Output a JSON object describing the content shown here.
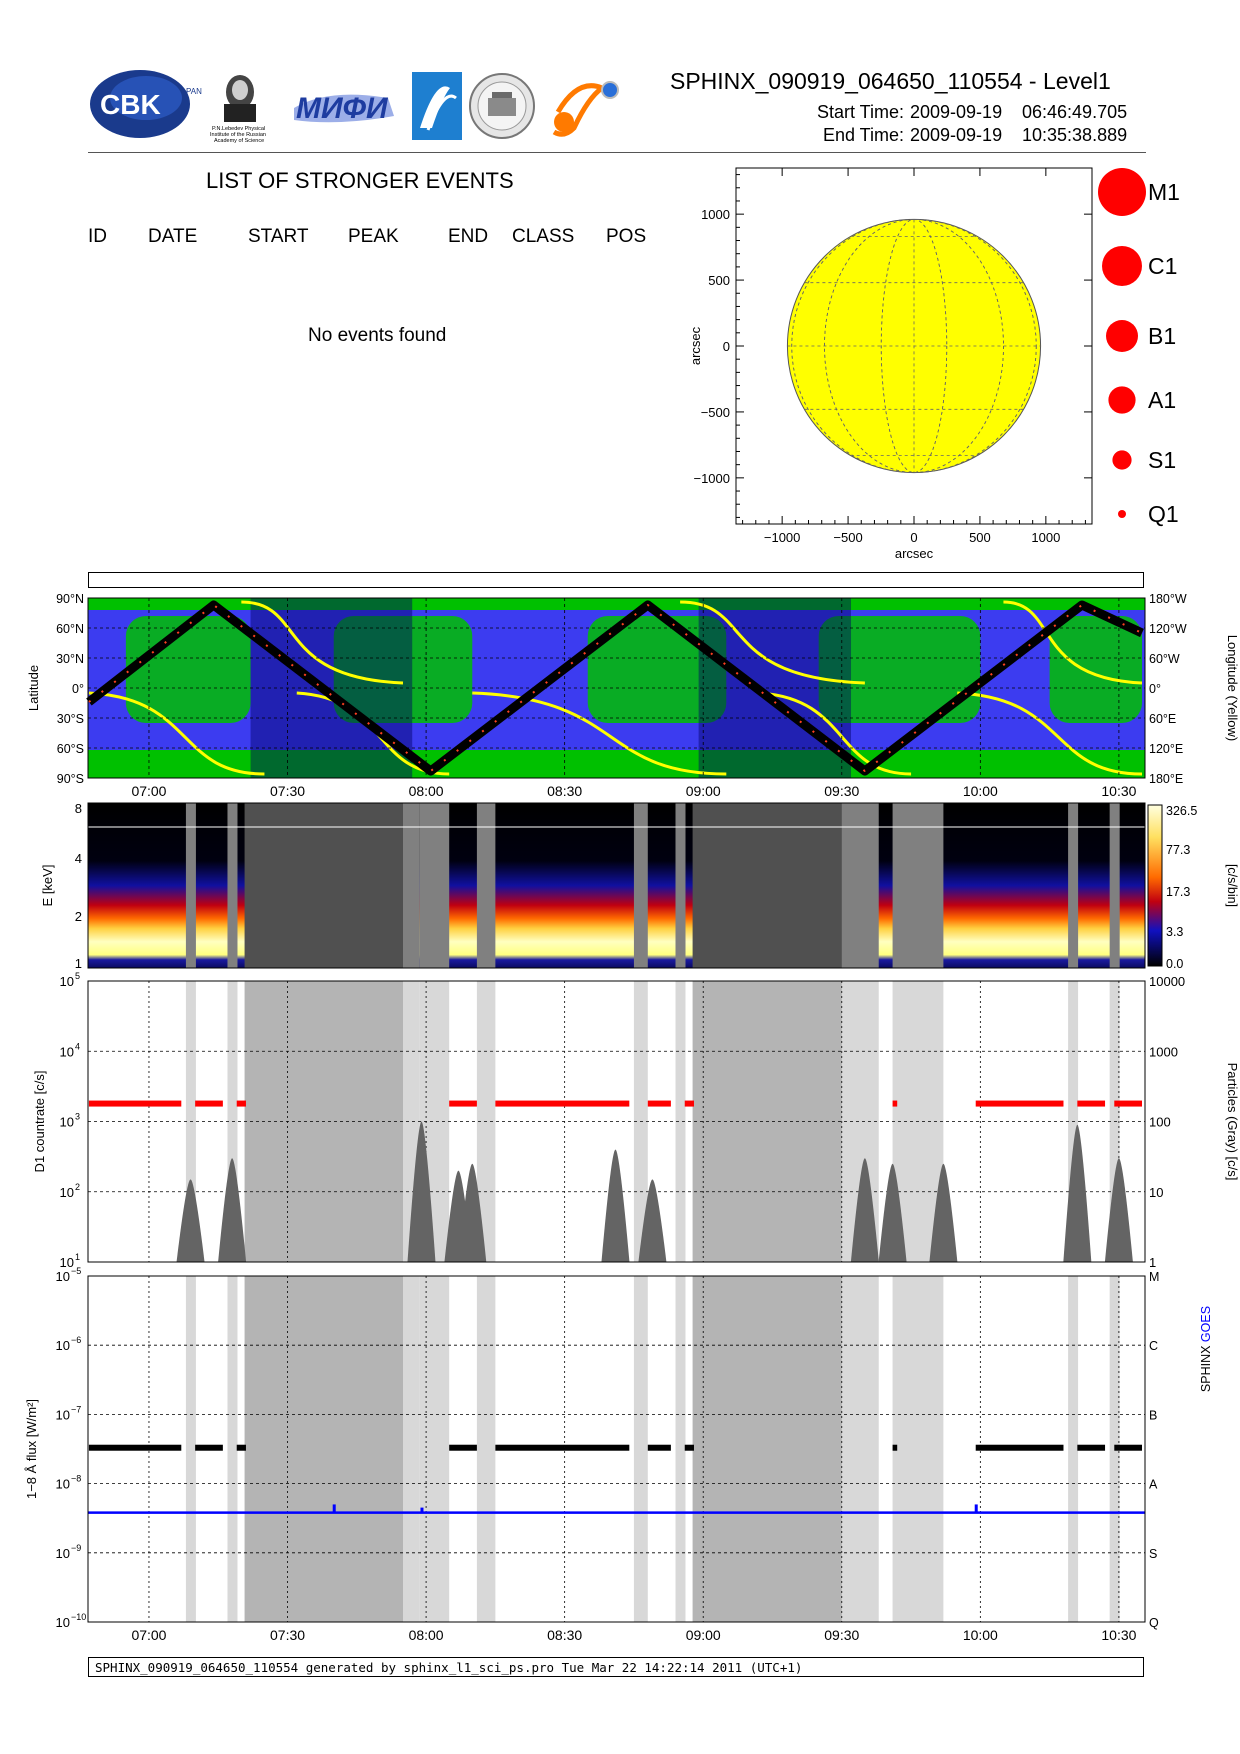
{
  "header": {
    "title": "SPHINX_090919_064650_110554 - Level1",
    "start_label": "Start Time:",
    "start_date": "2009-09-19",
    "start_time": "06:46:49.705",
    "end_label": "End Time:",
    "end_date": "2009-09-19",
    "end_time": "10:35:38.889"
  },
  "logos": {
    "cbk_text": "CBK",
    "cbk_sub": "PAN",
    "lebedev_text": [
      "P.N.Lebedev Physical",
      "Institute of the Russian",
      "Academy of Science"
    ],
    "mifi_text": "МИФИ"
  },
  "events": {
    "title": "LIST OF STRONGER EVENTS",
    "columns": [
      "ID",
      "DATE",
      "START",
      "PEAK",
      "END",
      "CLASS",
      "POS"
    ],
    "empty_message": "No events found"
  },
  "colors": {
    "flare_red": "#ff0000",
    "sun_yellow": "#ffff00",
    "ocean_blue": "#3c3cf0",
    "land_green": "#00c000",
    "goes_blue": "#0000ff",
    "gray_band": "#d8d8d8",
    "dark_band": "#b4b4b4"
  },
  "chart_data": [
    {
      "type": "scatter",
      "name": "solar_disk",
      "xlabel": "arcsec",
      "ylabel": "arcsec",
      "xlim": [
        -1350,
        1350
      ],
      "ylim": [
        -1350,
        1350
      ],
      "x_ticks": [
        -1000,
        -500,
        0,
        500,
        1000
      ],
      "y_ticks": [
        1000,
        500,
        0,
        -500,
        -1000
      ],
      "x_tick_labels": [
        "−1000",
        "−500",
        "0",
        "500",
        "1000"
      ],
      "y_tick_labels": [
        "1000",
        "500",
        "0",
        "−500",
        "−1000"
      ],
      "disk_radius": 960,
      "events": []
    },
    {
      "type": "scatter",
      "name": "legend_classes",
      "classes": [
        "M1",
        "C1",
        "B1",
        "A1",
        "S1",
        "Q1"
      ],
      "symbol_size": [
        6,
        5,
        4,
        3.4,
        2.4,
        1
      ]
    },
    {
      "type": "line",
      "name": "orbit_map",
      "ylabel": "Latitude",
      "y2label": "Longitude (Yellow)",
      "lat_ticks": [
        "90°N",
        "60°N",
        "30°N",
        "0°",
        "30°S",
        "60°S",
        "90°S"
      ],
      "lon_ticks": [
        "180°W",
        "120°W",
        "60°W",
        "0°",
        "60°E",
        "120°E",
        "180°E"
      ],
      "time_ticks": [
        "07:00",
        "07:30",
        "08:00",
        "08:30",
        "09:00",
        "09:30",
        "10:00",
        "10:30"
      ],
      "time_range": [
        "06:46:49",
        "10:35:38"
      ],
      "latitude_track": {
        "x": [
          "06:47",
          "07:14",
          "08:01",
          "08:48",
          "09:35",
          "10:22",
          "10:35"
        ],
        "y": [
          -14,
          83,
          -83,
          83,
          -83,
          83,
          55
        ]
      },
      "shadow_intervals": [
        [
          "07:22",
          "07:57"
        ],
        [
          "08:59",
          "09:32"
        ]
      ]
    },
    {
      "type": "heatmap",
      "name": "spectrogram",
      "ylabel": "E [keV]",
      "y_ticks": [
        "8",
        "4",
        "2",
        "1"
      ],
      "colorbar_label": "[c/s/bin]",
      "colorbar_ticks": [
        "326.5",
        "77.3",
        "17.3",
        "3.3",
        "0.0"
      ]
    },
    {
      "type": "line",
      "name": "d1_countrate",
      "ylabel": "D1 countrate [c/s]",
      "y2label": "Particles (Gray) [c/s]",
      "ylim": [
        10,
        100000
      ],
      "y_ticks": [
        "10",
        "10",
        "10",
        "10",
        "10"
      ],
      "y_tick_exp": [
        "5",
        "4",
        "3",
        "2",
        "1"
      ],
      "y2_ticks": [
        "10000",
        "1000",
        "100",
        "10",
        "1"
      ],
      "countrate_level": 1800,
      "particle_peaks": [
        {
          "t": "07:09",
          "v": 150
        },
        {
          "t": "07:18",
          "v": 300
        },
        {
          "t": "07:59",
          "v": 1000
        },
        {
          "t": "08:07",
          "v": 200
        },
        {
          "t": "08:10",
          "v": 250
        },
        {
          "t": "08:41",
          "v": 400
        },
        {
          "t": "08:49",
          "v": 150
        },
        {
          "t": "09:35",
          "v": 300
        },
        {
          "t": "09:41",
          "v": 250
        },
        {
          "t": "09:52",
          "v": 250
        },
        {
          "t": "10:21",
          "v": 900
        },
        {
          "t": "10:30",
          "v": 300
        }
      ]
    },
    {
      "type": "line",
      "name": "flux",
      "ylabel": "1−8 Å flux [W/m²]",
      "y2label_a": "SPHINX",
      "y2label_b": "GOES",
      "ylim": [
        1e-10,
        1e-05
      ],
      "y_ticks": [
        "10",
        "10",
        "10",
        "10",
        "10",
        "10"
      ],
      "y_tick_exp": [
        "−5",
        "−6",
        "−7",
        "−8",
        "−9",
        "−10"
      ],
      "class_ticks": [
        "M",
        "C",
        "B",
        "A",
        "S",
        "Q"
      ],
      "time_ticks": [
        "07:00",
        "07:30",
        "08:00",
        "08:30",
        "09:00",
        "09:30",
        "10:00",
        "10:30"
      ],
      "sphinx_level": 3.3e-08,
      "goes_level": 3.8e-09,
      "goes_spikes": [
        {
          "t": "07:40",
          "v": 5e-09
        },
        {
          "t": "07:59",
          "v": 4.5e-09
        },
        {
          "t": "09:59",
          "v": 5e-09
        }
      ]
    }
  ],
  "footer": {
    "text": "SPHINX_090919_064650_110554 generated by sphinx_l1_sci_ps.pro Tue Mar 22 14:22:14 2011 (UTC+1)"
  }
}
